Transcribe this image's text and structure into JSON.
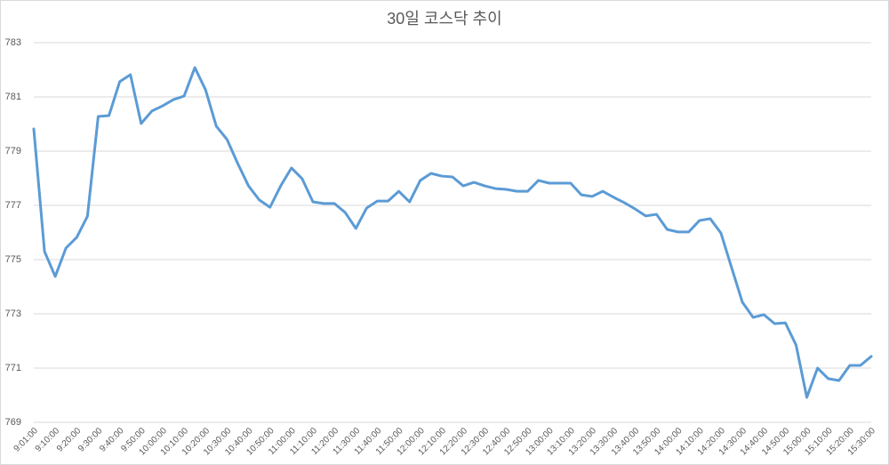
{
  "chart_data": {
    "type": "line",
    "title": "30일 코스닥 추이",
    "categories": [
      "9:01:00",
      null,
      "9:10:00",
      null,
      "9:20:00",
      null,
      "9:30:00",
      null,
      "9:40:00",
      null,
      "9:50:00",
      null,
      "10:00:00",
      null,
      "10:10:00",
      null,
      "10:20:00",
      null,
      "10:30:00",
      null,
      "10:40:00",
      null,
      "10:50:00",
      null,
      "11:00:00",
      null,
      "11:10:00",
      null,
      "11:20:00",
      null,
      "11:30:00",
      null,
      "11:40:00",
      null,
      "11:50:00",
      null,
      "12:00:00",
      null,
      "12:10:00",
      null,
      "12:20:00",
      null,
      "12:30:00",
      null,
      "12:40:00",
      null,
      "12:50:00",
      null,
      "13:00:00",
      null,
      "13:10:00",
      null,
      "13:20:00",
      null,
      "13:30:00",
      null,
      "13:40:00",
      null,
      "13:50:00",
      null,
      "14:00:00",
      null,
      "14:10:00",
      null,
      "14:20:00",
      null,
      "14:30:00",
      null,
      "14:40:00",
      null,
      "14:50:00",
      null,
      "15:00:00",
      null,
      "15:10:00",
      null,
      "15:20:00",
      null,
      "15:30:00"
    ],
    "values": [
      779.82,
      775.3,
      774.38,
      775.43,
      775.82,
      776.6,
      780.28,
      780.31,
      781.56,
      781.82,
      780.02,
      780.48,
      780.67,
      780.9,
      781.03,
      782.08,
      781.26,
      779.92,
      779.43,
      778.54,
      777.72,
      777.2,
      776.93,
      777.72,
      778.38,
      777.98,
      777.13,
      777.07,
      777.07,
      776.74,
      776.15,
      776.9,
      777.16,
      777.16,
      777.52,
      777.13,
      777.92,
      778.18,
      778.08,
      778.05,
      777.72,
      777.85,
      777.72,
      777.62,
      777.59,
      777.52,
      777.52,
      777.92,
      777.82,
      777.82,
      777.82,
      777.39,
      777.33,
      777.52,
      777.3,
      777.1,
      776.87,
      776.61,
      776.67,
      776.11,
      776.02,
      776.02,
      776.44,
      776.51,
      775.98,
      774.7,
      773.43,
      772.87,
      772.97,
      772.64,
      772.67,
      771.85,
      769.92,
      771.0,
      770.61,
      770.54,
      771.1,
      771.1,
      771.43
    ],
    "color": "#5b9bd5",
    "ylim": [
      769,
      783
    ],
    "yticks": [
      769,
      771,
      773,
      775,
      777,
      779,
      781,
      783
    ],
    "grid": true
  }
}
